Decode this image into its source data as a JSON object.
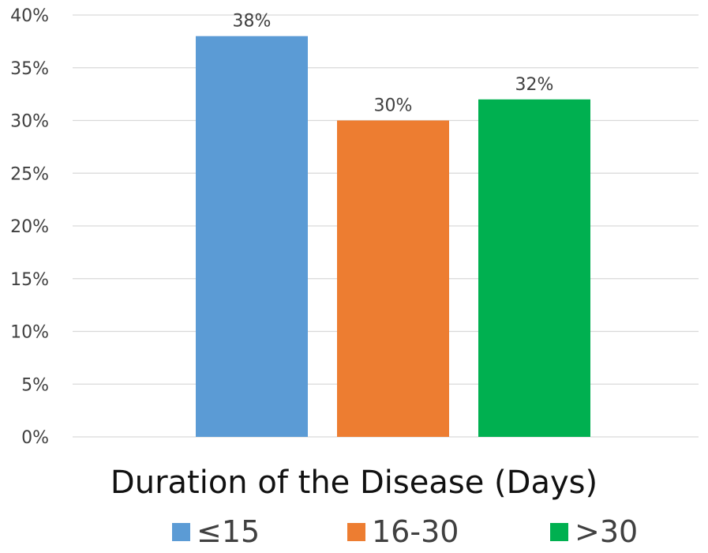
{
  "chart_data": {
    "type": "bar",
    "title": "",
    "xlabel": "Duration of the Disease (Days)",
    "ylabel": "",
    "categories": [
      "≤15",
      "16-30",
      ">30"
    ],
    "values": [
      38,
      30,
      32
    ],
    "value_labels": [
      "38%",
      "30%",
      "32%"
    ],
    "colors": [
      "#5B9BD5",
      "#ED7D31",
      "#00B050"
    ],
    "ylim": [
      0,
      40
    ],
    "yticks": [
      0,
      5,
      10,
      15,
      20,
      25,
      30,
      35,
      40
    ],
    "ytick_labels": [
      "0%",
      "5%",
      "10%",
      "15%",
      "20%",
      "25%",
      "30%",
      "35%",
      "40%"
    ],
    "grid": true,
    "legend_position": "bottom"
  }
}
